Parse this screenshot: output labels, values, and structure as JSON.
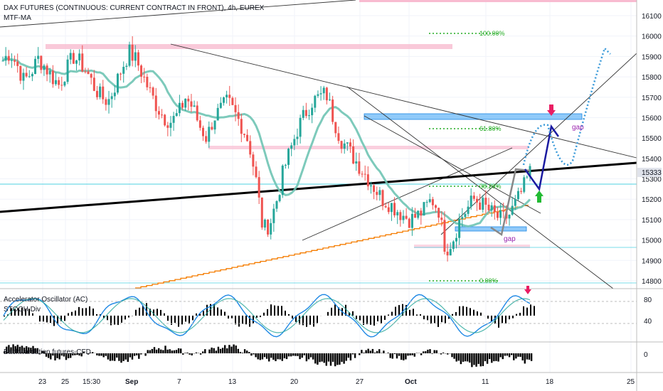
{
  "header": {
    "title": "DAX FUTURES (CONTINUOUS: CURRENT CONTRACT IN FRONT), 4h, EUREX",
    "indicator": "MTF-MA"
  },
  "panes": {
    "osc_label_1": "Accelerator Oscillator (AC)",
    "osc_label_2": "STOCH Div",
    "back_label": "Backwardation futures-CFD"
  },
  "annotations": {
    "fib_100": "100.00%",
    "fib_618": "61.80%",
    "fib_382": "38.20%",
    "fib_0": "0.00%",
    "gap_upper": "gap",
    "gap_lower": "gap"
  },
  "price_axis": {
    "ticks": [
      "16100",
      "16000",
      "15900",
      "15800",
      "15700",
      "15600",
      "15500",
      "15400",
      "15300",
      "15200",
      "15100",
      "15000",
      "14900",
      "14800"
    ],
    "current": "15333"
  },
  "osc_axis": {
    "ticks": [
      "80",
      "40"
    ]
  },
  "back_axis": {
    "ticks": [
      "0"
    ]
  },
  "time_axis": {
    "labels": [
      "23",
      "25",
      "15:30",
      "Sep",
      "7",
      "13",
      "20",
      "27",
      "Oct",
      "11",
      "18",
      "25"
    ]
  },
  "colors": {
    "up": "#26a69a",
    "down": "#ef5350",
    "ma": "#6fc4b4",
    "trend": "#000000",
    "step": "#f57c00",
    "fib": "#22ab22",
    "projection": "#1a1aa0",
    "dotted_projection": "#3a9ad9",
    "arrow_up": "#22bb33",
    "arrow_down": "#e91e63"
  },
  "chart_data": {
    "type": "candlestick",
    "symbol": "DAX FUTURES (CONTINUOUS: CURRENT CONTRACT IN FRONT)",
    "timeframe": "4h",
    "exchange": "EUREX",
    "y_range": [
      14750,
      16150
    ],
    "last_price": 15333,
    "fib_levels": [
      {
        "label": "100.00%",
        "price": 15995
      },
      {
        "label": "61.80%",
        "price": 15573
      },
      {
        "label": "38.20%",
        "price": 15285
      },
      {
        "label": "0.00%",
        "price": 14812
      }
    ],
    "path_closes": [
      15880,
      15920,
      15860,
      15780,
      15820,
      15890,
      15850,
      15800,
      15760,
      15830,
      15900,
      15870,
      15820,
      15750,
      15700,
      15680,
      15760,
      15850,
      15920,
      15880,
      15800,
      15720,
      15650,
      15600,
      15580,
      15620,
      15700,
      15650,
      15560,
      15500,
      15600,
      15640,
      15680,
      15620,
      15560,
      15480,
      15300,
      15050,
      15080,
      15200,
      15350,
      15450,
      15550,
      15620,
      15680,
      15700,
      15720,
      15600,
      15500,
      15450,
      15400,
      15350,
      15300,
      15250,
      15200,
      15180,
      15150,
      15120,
      15100,
      15120,
      15150,
      15200,
      15150,
      14950,
      15000,
      15100,
      15150,
      15200,
      15180,
      15150,
      15120,
      15100,
      15120,
      15180,
      15250,
      15333
    ],
    "projection_closes": [
      15250,
      15570,
      15480,
      15600
    ],
    "oscillator_axis": [
      40,
      80
    ],
    "backwardation_zero": 0
  }
}
